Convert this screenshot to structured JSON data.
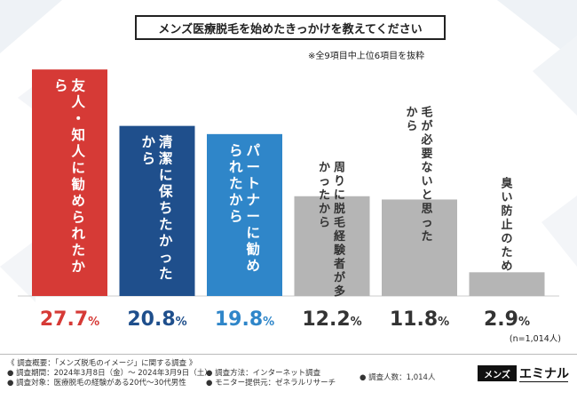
{
  "title": "メンズ医療脱毛を始めたきっかけを教えてください",
  "note": "※全9項目中上位6項目を抜粋",
  "n_label": "(n=1,014人)",
  "footer": {
    "overview": "《 調査概要：「メンズ脱毛のイメージ」に関する調査 》",
    "period": "● 調査期間：2024年3月8日（金）〜 2024年3月9日（土）",
    "target": "● 調査対象：医療脱毛の経験がある20代〜30代男性",
    "method": "● 調査方法：インターネット調査",
    "provider": "● モニター提供元：ゼネラルリサーチ",
    "count": "● 調査人数：1,014人"
  },
  "logo": {
    "box": "メンズ",
    "text": "エミナル"
  },
  "chart_data": {
    "type": "bar",
    "title": "メンズ医療脱毛を始めたきっかけを教えてください",
    "unit": "%",
    "ylim": [
      0,
      30
    ],
    "categories": [
      "友人・知人に勧められたから",
      "清潔に保ちたかったから",
      "パートナーに勧められたから",
      "周りに脱毛経験者が多かったから",
      "毛が必要ないと思ったから",
      "臭い防止のため"
    ],
    "values": [
      27.7,
      20.8,
      19.8,
      12.2,
      11.8,
      2.9
    ],
    "value_labels": [
      "27.7%",
      "20.8%",
      "19.8%",
      "12.2%",
      "11.8%",
      "2.9%"
    ],
    "colors": [
      "#d63a36",
      "#1f4f8c",
      "#2f86c9",
      "#b5b5b5",
      "#b5b5b5",
      "#b5b5b5"
    ],
    "label_colors": [
      "#d63a36",
      "#1f4f8c",
      "#2f86c9",
      "#333333",
      "#333333",
      "#333333"
    ]
  }
}
